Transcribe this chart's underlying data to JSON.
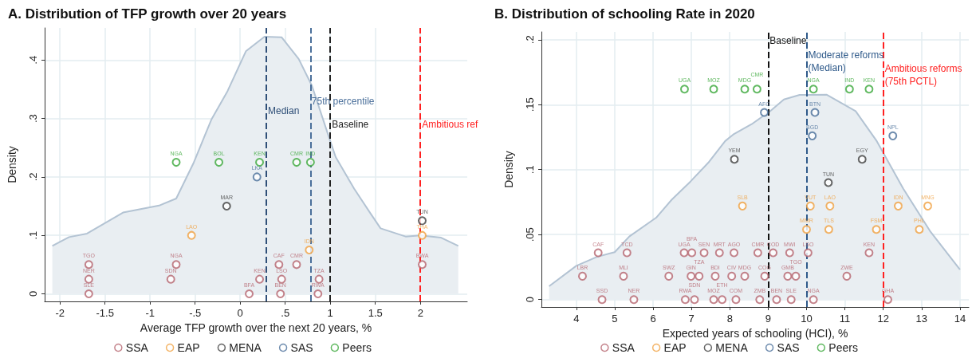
{
  "chart_data": [
    {
      "type": "area",
      "title": "A. Distribution of TFP growth over 20 years",
      "xlabel": "Average TFP growth over the next 20 years, %",
      "ylabel": "Density",
      "xlim": [
        -2.17,
        2.52
      ],
      "ylim": [
        -0.013,
        0.455
      ],
      "xticks": [
        {
          "value": -2,
          "label": "-2"
        },
        {
          "value": -1.5,
          "label": "-1.5"
        },
        {
          "value": -1,
          "label": "-1"
        },
        {
          "value": -0.5,
          "label": "-.5"
        },
        0,
        {
          "value": 0.5,
          "label": ".5"
        },
        1,
        {
          "value": 1.5,
          "label": "1.5"
        },
        2
      ],
      "yticks": [
        0,
        {
          "value": 0.1,
          "label": ".1"
        },
        {
          "value": 0.2,
          "label": ".2"
        },
        {
          "value": 0.3,
          "label": ".3"
        },
        {
          "value": 0.4,
          "label": ".4"
        }
      ],
      "grid": true,
      "legend": "bottom",
      "series": [
        {
          "type": "area",
          "color": "#b3c3d3",
          "marker": "none",
          "x": [
            -2.085,
            -1.9,
            -1.7,
            -1.3,
            -0.9,
            -0.71,
            -0.52,
            -0.32,
            -0.14,
            0.063,
            0.27,
            0.459,
            0.649,
            0.796,
            1.0,
            1.06,
            1.264,
            1.44,
            1.558,
            1.836,
            1.997,
            2.23,
            2.42
          ],
          "values": [
            0.082,
            0.097,
            0.103,
            0.139,
            0.151,
            0.163,
            0.223,
            0.298,
            0.347,
            0.415,
            0.44,
            0.439,
            0.402,
            0.356,
            0.261,
            0.234,
            0.18,
            0.139,
            0.112,
            0.098,
            0.1,
            0.096,
            0.082
          ]
        },
        {
          "type": "scatter",
          "name": "SSA",
          "color": "#b5646e",
          "marker": "circle",
          "x": [
            -1.68,
            -1.68,
            -1.68,
            -0.71,
            -0.77,
            0.1,
            0.215,
            0.43,
            0.46,
            0.447,
            0.626,
            0.875,
            0.863,
            2.02
          ],
          "values": [
            0.05,
            0.025,
            0,
            0.05,
            0.025,
            0,
            0.025,
            0.05,
            0.025,
            0,
            0.05,
            0.025,
            0,
            0.05
          ],
          "value_labels": [
            "TGO",
            "NER",
            "SLE",
            "NGA",
            "SDN",
            "BFA",
            "KEN",
            "CAF",
            "LSO",
            "BEN",
            "CMR",
            "TZA",
            "RWA",
            "BWA"
          ]
        },
        {
          "type": "scatter",
          "name": "EAP",
          "color": "#f0a040",
          "marker": "circle",
          "x": [
            -0.54,
            0.766,
            2.02
          ],
          "values": [
            0.1,
            0.075,
            0.1
          ],
          "value_labels": [
            "LAO",
            "IDN",
            "THA"
          ]
        },
        {
          "type": "scatter",
          "name": "MENA",
          "color": "#404040",
          "marker": "circle",
          "x": [
            -0.15,
            2.02
          ],
          "values": [
            0.15,
            0.125
          ],
          "value_labels": [
            "MAR",
            "TUN"
          ]
        },
        {
          "type": "scatter",
          "name": "SAS",
          "color": "#4a6f9a",
          "marker": "circle",
          "x": [
            0.186
          ],
          "values": [
            0.2
          ],
          "value_labels": [
            "LKA"
          ]
        },
        {
          "type": "scatter",
          "name": "Peers",
          "color": "#3aa83a",
          "marker": "circle",
          "x": [
            -0.71,
            -0.236,
            0.215,
            0.626,
            0.78
          ],
          "values": [
            0.225,
            0.225,
            0.225,
            0.225,
            0.225
          ],
          "value_labels": [
            "NGA",
            "BOL",
            "KEN",
            "CMR",
            "IND"
          ]
        }
      ],
      "ref_lines": [
        {
          "axis": "x",
          "value": 0.29,
          "label": "Median",
          "color": "#2f4f78",
          "line_style": "dashed"
        },
        {
          "axis": "x",
          "value": 0.775,
          "label": "75th percentile",
          "color": "#4a6f9a",
          "line_style": "dashed"
        },
        {
          "axis": "x",
          "value": 1,
          "label": "Baseline",
          "color": "#222222",
          "line_style": "dashed"
        },
        {
          "axis": "x",
          "value": 2,
          "label": "Ambitious ref",
          "color": "#ff2020",
          "line_style": "dashed"
        }
      ]
    },
    {
      "type": "area",
      "title": "B. Distribution of schooling Rate in 2020",
      "xlabel": "Expected years of schooling (HCI), %",
      "ylabel": "Density",
      "xlim": [
        3.09,
        14.23
      ],
      "ylim": [
        -0.0057,
        0.206
      ],
      "xticks": [
        4,
        5,
        6,
        7,
        8,
        9,
        10,
        11,
        12,
        13,
        14
      ],
      "yticks": [
        0,
        {
          "value": 0.05,
          "label": ".05"
        },
        {
          "value": 0.1,
          "label": ".1"
        },
        {
          "value": 0.15,
          "label": ".15"
        },
        {
          "value": 0.2,
          "label": ".2"
        }
      ],
      "grid": true,
      "legend": "bottom",
      "series": [
        {
          "type": "area",
          "color": "#b3c3d3",
          "marker": "none",
          "x": [
            3.29,
            4.0,
            4.55,
            5.0,
            5.38,
            6.08,
            6.49,
            6.98,
            7.46,
            7.88,
            8.09,
            8.57,
            9.05,
            9.41,
            9.82,
            10.52,
            11.28,
            11.83,
            12.52,
            13.22,
            14.0
          ],
          "values": [
            0.0103,
            0.026,
            0.033,
            0.0365,
            0.0485,
            0.063,
            0.077,
            0.091,
            0.106,
            0.122,
            0.127,
            0.135,
            0.145,
            0.154,
            0.1575,
            0.1577,
            0.145,
            0.122,
            0.0854,
            0.0527,
            0.023
          ]
        },
        {
          "type": "scatter",
          "name": "SSA",
          "color": "#b5646e",
          "marker": "circle",
          "x": [
            4.67,
            5.5,
            6.84,
            7.08,
            7.58,
            7.8,
            8.16,
            8.78,
            9.22,
            9.6,
            10.18,
            12.12,
            4.16,
            5.23,
            6.41,
            6.99,
            7.2,
            7.62,
            8.05,
            8.39,
            8.91,
            9.51,
            9.72,
            11.05,
            4.57,
            5.32,
            6.81,
            7.01,
            7.33,
            7.73,
            8.11,
            8.73,
            9.13,
            9.56,
            10.04,
            11.63
          ],
          "values": [
            0,
            0,
            0,
            0,
            0,
            0,
            0,
            0,
            0,
            0,
            0,
            0,
            0.018,
            0.018,
            0.018,
            0.018,
            0.018,
            0.018,
            0.018,
            0.018,
            0.018,
            0.018,
            0.018,
            0.018,
            0.036,
            0.036,
            0.036,
            0.036,
            0.036,
            0.036,
            0.036,
            0.036,
            0.036,
            0.036,
            0.036,
            0.036
          ],
          "value_labels": [
            "SSD",
            "NER",
            "RWA",
            "SDN",
            "MOZ",
            "ETH",
            "COM",
            "ZMB",
            "BEN",
            "SLE",
            "NGA",
            "GHA",
            "LBR",
            "MLI",
            "SWZ",
            "GIN",
            "TZA",
            "BDI",
            "CIV",
            "MDG",
            "COG",
            "GMB",
            "TGO",
            "ZWE",
            "CAF",
            "TCD",
            "UGA",
            "BFA",
            "SEN",
            "MRT",
            "AGO",
            "CMR",
            "COD",
            "MWI",
            "LSO",
            "KEN"
          ]
        },
        {
          "type": "scatter",
          "name": "EAP",
          "color": "#f0a040",
          "marker": "circle",
          "x": [
            10.0,
            10.58,
            11.82,
            12.94,
            8.33,
            10.1,
            10.61,
            12.39,
            13.16
          ],
          "values": [
            0.054,
            0.054,
            0.054,
            0.054,
            0.072,
            0.072,
            0.072,
            0.072,
            0.072
          ],
          "value_labels": [
            "MMR",
            "TLS",
            "FSM",
            "PHL",
            "SLB",
            "VUT",
            "LAO",
            "IDN",
            "MNG"
          ]
        },
        {
          "type": "scatter",
          "name": "MENA",
          "color": "#404040",
          "marker": "circle",
          "x": [
            10.57,
            8.12,
            11.45
          ],
          "values": [
            0.09,
            0.108,
            0.108
          ],
          "value_labels": [
            "TUN",
            "YEM",
            "EGY"
          ]
        },
        {
          "type": "scatter",
          "name": "SAS",
          "color": "#4a6f9a",
          "marker": "circle",
          "x": [
            10.15,
            12.25,
            8.9,
            10.22
          ],
          "values": [
            0.126,
            0.126,
            0.144,
            0.144
          ],
          "value_labels": [
            "BGD",
            "NPL",
            "AFG",
            "BTN"
          ]
        },
        {
          "type": "scatter",
          "name": "Peers",
          "color": "#3aa83a",
          "marker": "circle",
          "x": [
            6.82,
            7.58,
            8.39,
            8.71,
            10.18,
            11.12,
            11.63
          ],
          "values": [
            0.162,
            0.162,
            0.162,
            0.162,
            0.162,
            0.162,
            0.162
          ],
          "value_labels": [
            "UGA",
            "MOZ",
            "MDG",
            "CMR",
            "NGA",
            "IND",
            "KEN"
          ]
        }
      ],
      "ref_lines": [
        {
          "axis": "x",
          "value": 9,
          "label": "Baseline",
          "color": "#111111",
          "line_style": "dashed"
        },
        {
          "axis": "x",
          "value": 10,
          "label": "Moderate reforms\n(Median)",
          "color": "#2f5a8a",
          "line_style": "dashed"
        },
        {
          "axis": "x",
          "value": 12,
          "label": "Ambitious reforms\n(75th PCTL)",
          "color": "#ff2020",
          "line_style": "dashed"
        }
      ]
    }
  ]
}
